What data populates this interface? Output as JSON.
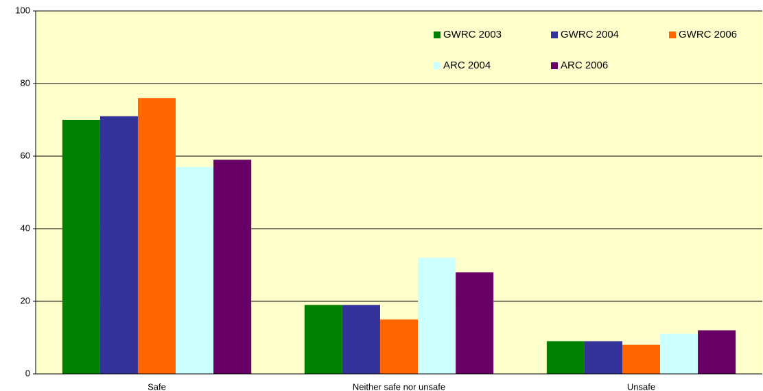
{
  "chart_data": {
    "type": "bar",
    "categories": [
      "Safe",
      "Neither safe nor unsafe",
      "Unsafe"
    ],
    "series": [
      {
        "name": "GWRC 2003",
        "color": "#008000",
        "values": [
          70,
          19,
          9
        ]
      },
      {
        "name": "GWRC 2004",
        "color": "#333399",
        "values": [
          71,
          19,
          9
        ]
      },
      {
        "name": "GWRC 2006",
        "color": "#ff6600",
        "values": [
          76,
          15,
          8
        ]
      },
      {
        "name": "ARC 2004",
        "color": "#ccffff",
        "values": [
          57,
          32,
          11
        ]
      },
      {
        "name": "ARC 2006",
        "color": "#660066",
        "values": [
          59,
          28,
          12
        ]
      }
    ],
    "ylim": [
      0,
      100
    ],
    "yticks": [
      0,
      20,
      40,
      60,
      80,
      100
    ],
    "grid": true,
    "legend": "top-right",
    "background": "#ffffcc"
  }
}
